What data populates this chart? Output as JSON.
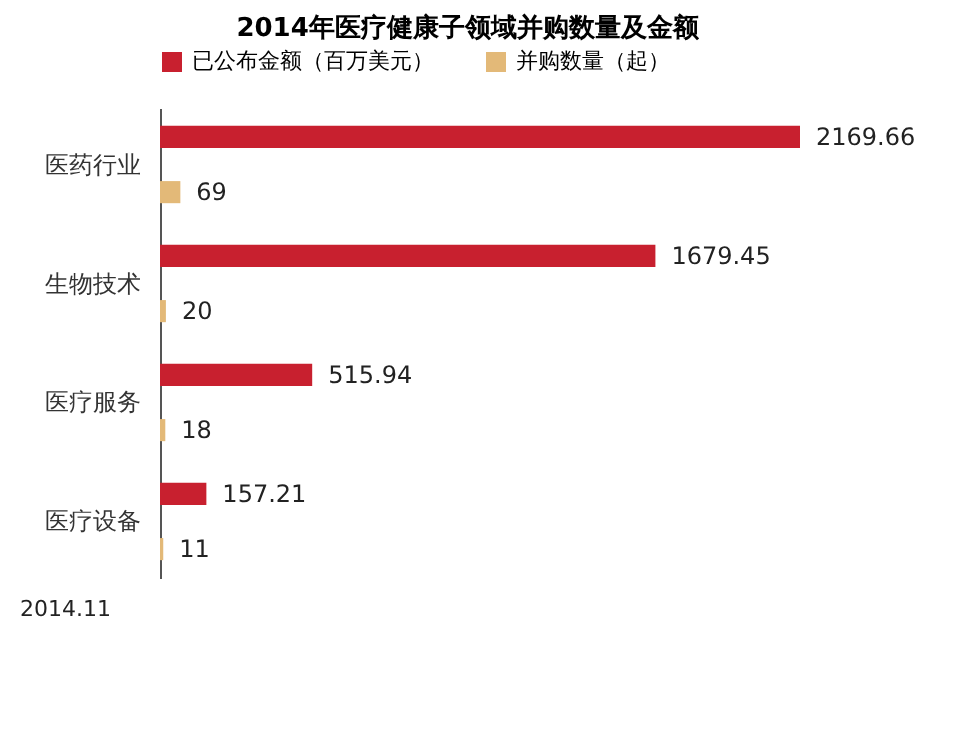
{
  "chart_data": {
    "type": "bar",
    "orientation": "horizontal",
    "title": "2014年医疗健康子领域并购数量及金额",
    "categories": [
      "医药行业",
      "生物技术",
      "医疗服务",
      "医疗设备"
    ],
    "series": [
      {
        "name": "已公布金额（百万美元）",
        "color": "#c8202f",
        "values": [
          2169.66,
          1679.45,
          515.94,
          157.21
        ]
      },
      {
        "name": "并购数量（起）",
        "color": "#e3b978",
        "values": [
          69,
          20,
          18,
          11
        ]
      }
    ],
    "data_labels": true,
    "legend": "top",
    "grid": false,
    "annotations": [
      "2014.11"
    ]
  }
}
